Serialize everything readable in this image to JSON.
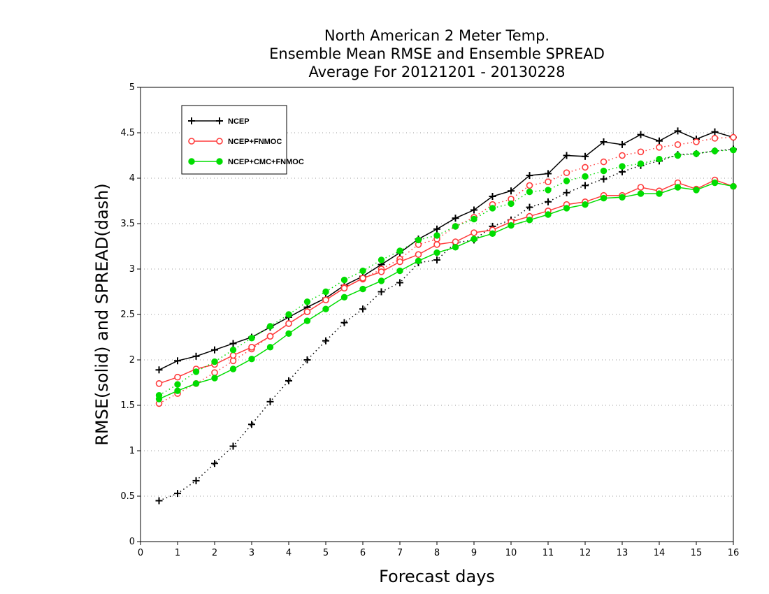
{
  "chart_data": {
    "type": "line",
    "title": [
      "North American 2 Meter Temp.",
      "Ensemble Mean RMSE and Ensemble SPREAD",
      "Average For 20121201 - 20130228"
    ],
    "xlabel": "Forecast days",
    "ylabel": "RMSE(solid) and SPREAD(dash)",
    "xlim": [
      0,
      16
    ],
    "ylim": [
      0,
      5
    ],
    "xticks": [
      "0",
      "1",
      "2",
      "3",
      "4",
      "5",
      "6",
      "7",
      "8",
      "9",
      "10",
      "11",
      "12",
      "13",
      "14",
      "15",
      "16"
    ],
    "yticks": [
      "0",
      "0.5",
      "1",
      "1.5",
      "2",
      "2.5",
      "3",
      "3.5",
      "4",
      "4.5",
      "5"
    ],
    "grid": "horizontal dotted",
    "legend_position": "top-left",
    "x": [
      0.5,
      1,
      1.5,
      2,
      2.5,
      3,
      3.5,
      4,
      4.5,
      5,
      5.5,
      6,
      6.5,
      7,
      7.5,
      8,
      8.5,
      9,
      9.5,
      10,
      10.5,
      11,
      11.5,
      12,
      12.5,
      13,
      13.5,
      14,
      14.5,
      15,
      15.5,
      16
    ],
    "series": [
      {
        "name": "NCEP",
        "color": "#000000",
        "marker": "plus",
        "rmse": [
          1.89,
          1.99,
          2.04,
          2.11,
          2.18,
          2.25,
          2.36,
          2.47,
          2.58,
          2.68,
          2.82,
          2.92,
          3.05,
          3.18,
          3.33,
          3.44,
          3.56,
          3.65,
          3.8,
          3.86,
          4.03,
          4.05,
          4.25,
          4.24,
          4.4,
          4.37,
          4.48,
          4.41,
          4.52,
          4.43,
          4.51,
          4.45
        ],
        "spread": [
          0.45,
          0.53,
          0.67,
          0.86,
          1.05,
          1.29,
          1.54,
          1.77,
          2.0,
          2.21,
          2.41,
          2.56,
          2.75,
          2.85,
          3.07,
          3.1,
          3.29,
          3.32,
          3.47,
          3.54,
          3.68,
          3.74,
          3.84,
          3.92,
          3.99,
          4.07,
          4.14,
          4.19,
          4.26,
          4.27,
          4.3,
          4.32
        ]
      },
      {
        "name": "NCEP+FNMOC",
        "color": "#ff3b3b",
        "marker": "open-circle",
        "rmse": [
          1.74,
          1.81,
          1.9,
          1.95,
          2.05,
          2.14,
          2.26,
          2.4,
          2.53,
          2.66,
          2.79,
          2.9,
          2.97,
          3.08,
          3.16,
          3.27,
          3.3,
          3.4,
          3.43,
          3.52,
          3.58,
          3.64,
          3.71,
          3.74,
          3.81,
          3.81,
          3.9,
          3.86,
          3.95,
          3.88,
          3.98,
          3.91
        ],
        "spread": [
          1.52,
          1.63,
          1.74,
          1.86,
          1.99,
          2.12,
          2.26,
          2.4,
          2.53,
          2.66,
          2.8,
          2.89,
          3.0,
          3.11,
          3.27,
          3.33,
          3.47,
          3.57,
          3.71,
          3.77,
          3.92,
          3.96,
          4.06,
          4.12,
          4.18,
          4.25,
          4.29,
          4.34,
          4.37,
          4.4,
          4.44,
          4.45
        ]
      },
      {
        "name": "NCEP+CMC+FNMOC",
        "color": "#00dd00",
        "marker": "filled-circle",
        "rmse": [
          1.57,
          1.66,
          1.74,
          1.8,
          1.9,
          2.01,
          2.14,
          2.29,
          2.43,
          2.56,
          2.69,
          2.78,
          2.87,
          2.98,
          3.09,
          3.18,
          3.24,
          3.33,
          3.39,
          3.48,
          3.54,
          3.6,
          3.67,
          3.71,
          3.78,
          3.79,
          3.83,
          3.83,
          3.9,
          3.87,
          3.95,
          3.91
        ],
        "spread": [
          1.61,
          1.73,
          1.87,
          1.98,
          2.11,
          2.24,
          2.37,
          2.5,
          2.64,
          2.75,
          2.88,
          2.98,
          3.1,
          3.2,
          3.32,
          3.37,
          3.47,
          3.55,
          3.67,
          3.72,
          3.85,
          3.87,
          3.97,
          4.02,
          4.08,
          4.13,
          4.16,
          4.21,
          4.25,
          4.27,
          4.3,
          4.31
        ]
      }
    ]
  }
}
